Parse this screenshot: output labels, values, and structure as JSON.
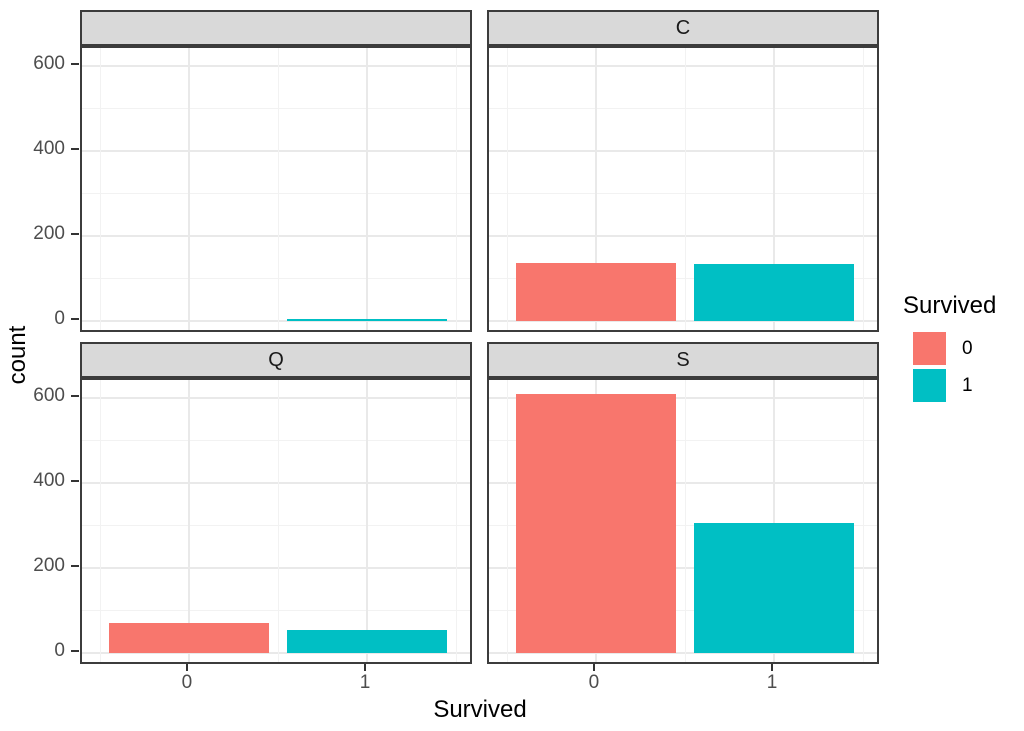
{
  "chart_data": {
    "type": "bar",
    "title": "",
    "xlabel": "Survived",
    "ylabel": "count",
    "facet_layout": "2x2 grid, shared axes",
    "facets": [
      {
        "label": "",
        "values": {
          "0": 0,
          "1": 2
        }
      },
      {
        "label": "C",
        "values": {
          "0": 137,
          "1": 133
        }
      },
      {
        "label": "Q",
        "values": {
          "0": 70,
          "1": 53
        }
      },
      {
        "label": "S",
        "values": {
          "0": 610,
          "1": 305
        }
      }
    ],
    "categories": [
      "0",
      "1"
    ],
    "series_colors": {
      "0": "#F8766D",
      "1": "#00BFC4"
    },
    "y_ticks": [
      0,
      200,
      400,
      600
    ],
    "y_minor_ticks": [
      100,
      300,
      500
    ],
    "ylim": [
      -31,
      642
    ],
    "grid": true,
    "legend_position": "right",
    "legend": {
      "title": "Survived",
      "entries": [
        {
          "label": "0",
          "color": "#F8766D"
        },
        {
          "label": "1",
          "color": "#00BFC4"
        }
      ]
    }
  },
  "theme": {
    "strip_fill": "#d9d9d9",
    "strip_border": "#3c3c3c",
    "panel_border": "#3c3c3c",
    "major_gridline": "#e9e9e9",
    "minor_gridline": "#f2f2f2",
    "tick_color": "#333333",
    "tick_label_color": "#4d4d4d",
    "axis_title_color": "#000000",
    "background": "#ffffff"
  }
}
